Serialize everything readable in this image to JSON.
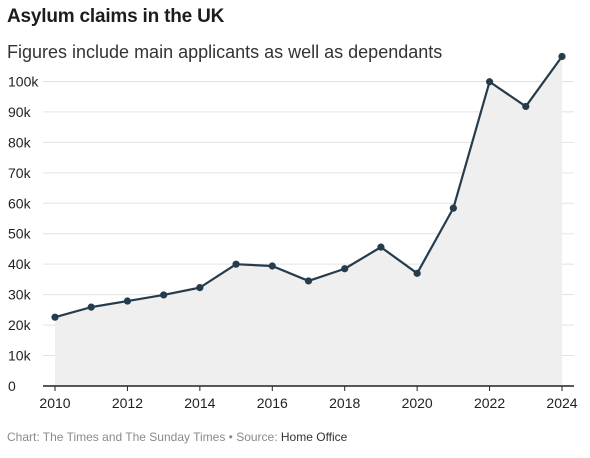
{
  "title": "Asylum claims in the UK",
  "subtitle": "Figures include main applicants as well as dependants",
  "footer": {
    "prefix": "Chart: The Times and The Sunday Times • Source: ",
    "source": "Home Office"
  },
  "colors": {
    "line": "#253c4d",
    "area": "#efefef",
    "grid": "#e3e3e3",
    "axis": "#222222"
  },
  "chart_data": {
    "type": "area",
    "title": "Asylum claims in the UK",
    "subtitle": "Figures include main applicants as well as dependants",
    "xlabel": "",
    "ylabel": "",
    "x": [
      2010,
      2011,
      2012,
      2013,
      2014,
      2015,
      2016,
      2017,
      2018,
      2019,
      2020,
      2021,
      2022,
      2023,
      2024
    ],
    "series": [
      {
        "values": [
          22600,
          25900,
          27900,
          29900,
          32300,
          40000,
          39400,
          34500,
          38500,
          45600,
          37000,
          58400,
          99900,
          91800,
          108200
        ]
      }
    ],
    "xticks": [
      "2010",
      "2012",
      "2014",
      "2016",
      "2018",
      "2020",
      "2022",
      "2024"
    ],
    "xtick_values": [
      2010,
      2012,
      2014,
      2016,
      2018,
      2020,
      2022,
      2024
    ],
    "yticks": [
      "0",
      "10k",
      "20k",
      "30k",
      "40k",
      "50k",
      "60k",
      "70k",
      "80k",
      "90k",
      "100k"
    ],
    "ytick_values": [
      0,
      10000,
      20000,
      30000,
      40000,
      50000,
      60000,
      70000,
      80000,
      90000,
      100000
    ],
    "xlim": [
      2010,
      2024
    ],
    "ylim": [
      0,
      110000
    ],
    "grid": true,
    "legend": "none"
  }
}
